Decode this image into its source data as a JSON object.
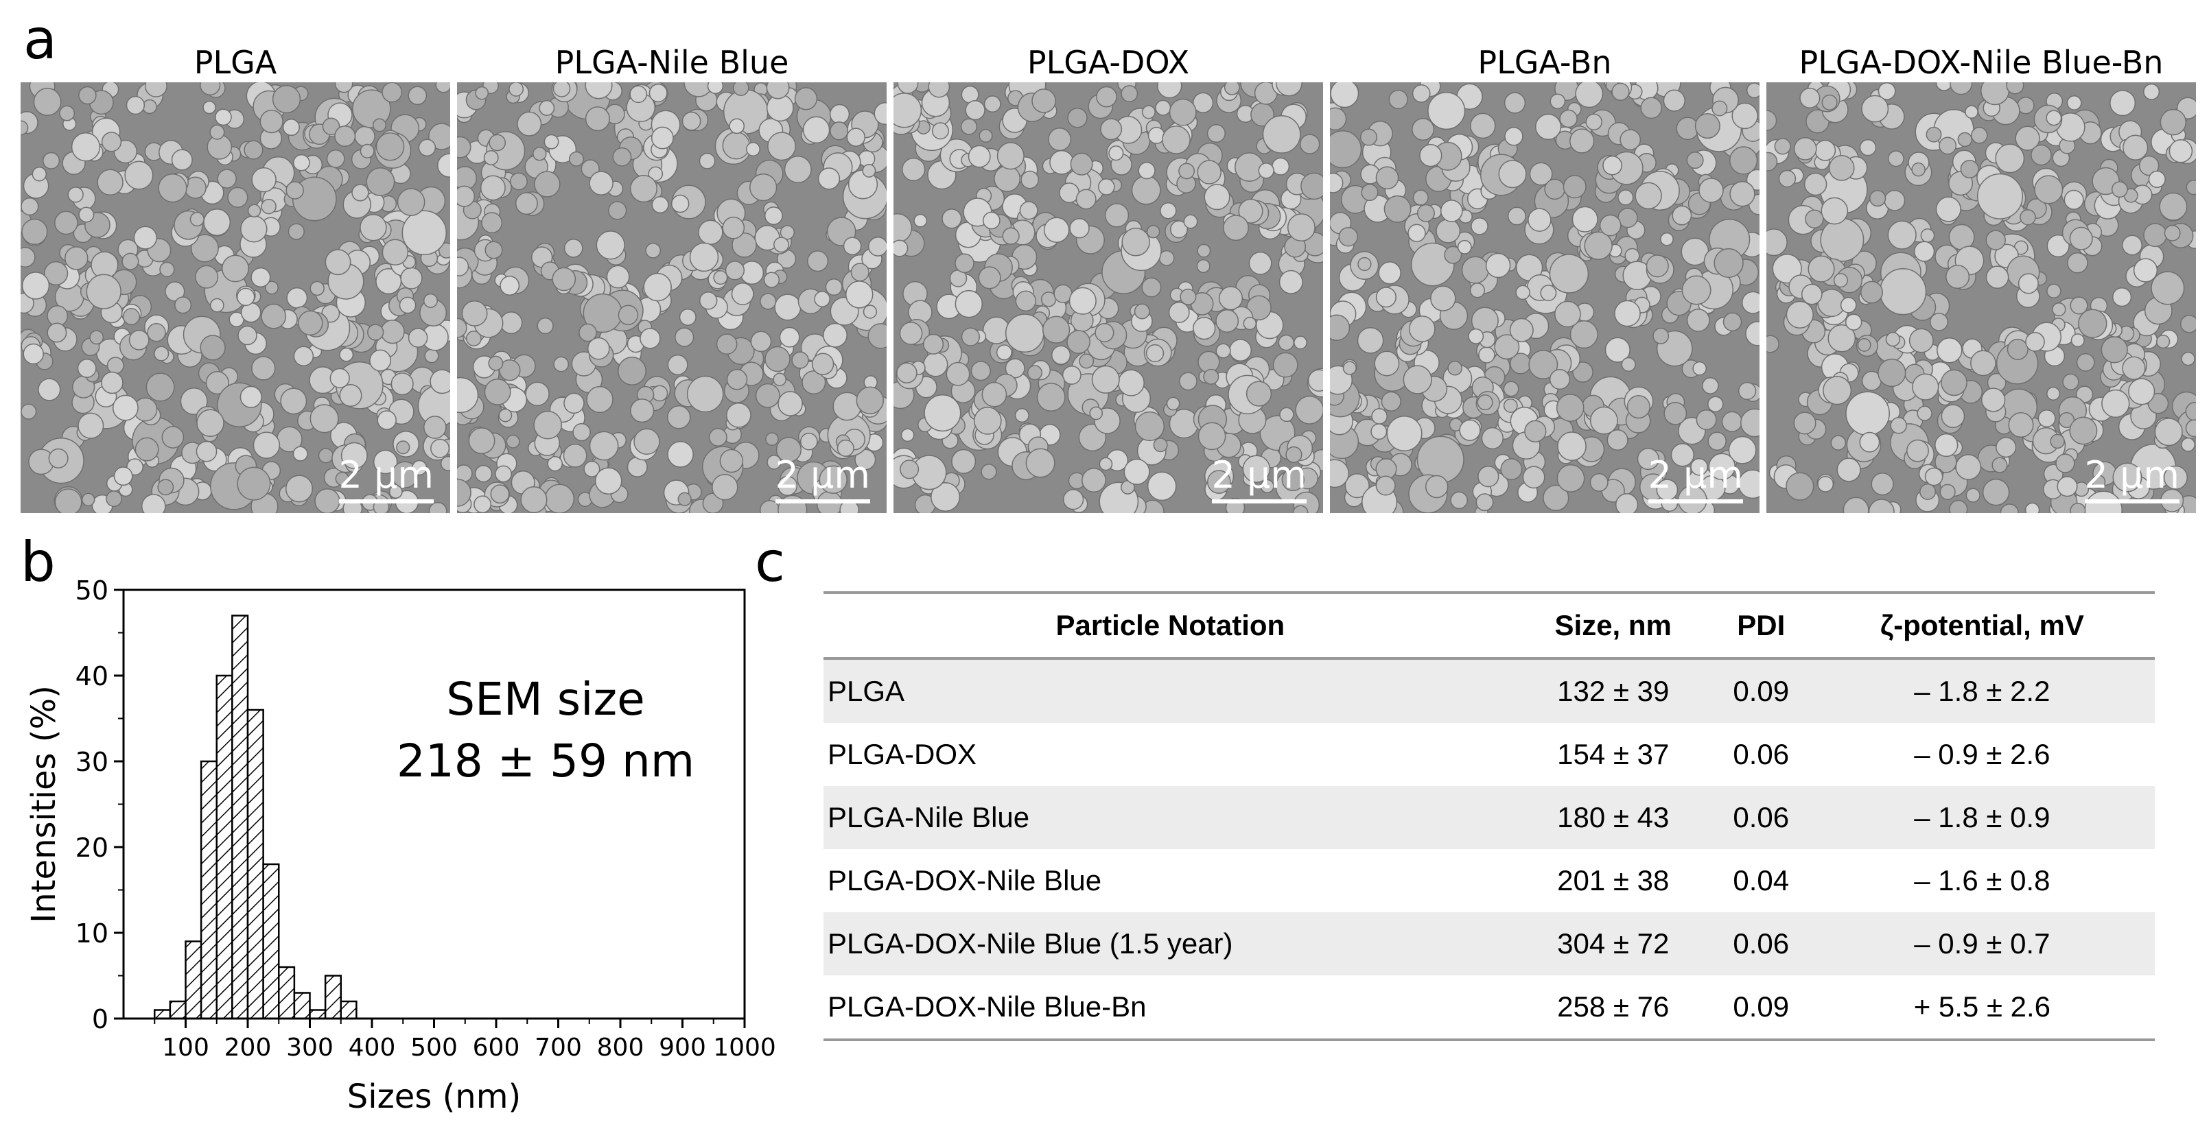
{
  "panel_a": {
    "letter": "a",
    "images": [
      {
        "title": "PLGA",
        "scale": "2 µm"
      },
      {
        "title": "PLGA-Nile Blue",
        "scale": "2 µm"
      },
      {
        "title": "PLGA-DOX",
        "scale": "2 µm"
      },
      {
        "title": "PLGA-Bn",
        "scale": "2 µm"
      },
      {
        "title": "PLGA-DOX-Nile Blue-Bn",
        "scale": "2 µm"
      }
    ]
  },
  "panel_b": {
    "letter": "b",
    "annotation_line1": "SEM size",
    "annotation_line2": "218 ± 59 nm"
  },
  "panel_c": {
    "letter": "c",
    "headers": [
      "Particle Notation",
      "Size, nm",
      "PDI",
      "ζ-potential, mV"
    ],
    "rows": [
      [
        "PLGA",
        "132 ± 39",
        "0.09",
        "– 1.8 ± 2.2"
      ],
      [
        "PLGA-DOX",
        "154 ± 37",
        "0.06",
        "– 0.9 ± 2.6"
      ],
      [
        "PLGA-Nile  Blue",
        "180 ± 43",
        "0.06",
        "– 1.8 ± 0.9"
      ],
      [
        "PLGA-DOX-Nile  Blue",
        "201 ± 38",
        "0.04",
        "– 1.6 ± 0.8"
      ],
      [
        "PLGA-DOX-Nile  Blue (1.5 year)",
        "304 ± 72",
        "0.06",
        "– 0.9 ± 0.7"
      ],
      [
        "PLGA-DOX-Nile  Blue-Bn",
        "258 ± 76",
        "0.09",
        "+ 5.5 ± 2.6"
      ]
    ]
  },
  "chart_data": {
    "type": "bar",
    "title": "",
    "xlabel": "Sizes (nm)",
    "ylabel": "Intensities (%)",
    "xlim": [
      0,
      1000
    ],
    "ylim": [
      0,
      50
    ],
    "xticks": [
      100,
      200,
      300,
      400,
      500,
      600,
      700,
      800,
      900,
      1000
    ],
    "yticks": [
      0,
      10,
      20,
      30,
      40,
      50
    ],
    "bin_width": 25,
    "bin_starts": [
      50,
      75,
      100,
      125,
      150,
      175,
      200,
      225,
      250,
      275,
      300,
      325,
      350,
      375,
      400,
      425
    ],
    "values": [
      1,
      2,
      9,
      30,
      40,
      47,
      36,
      18,
      6,
      3,
      1,
      5,
      2,
      0,
      0,
      0
    ],
    "bar_fill": "hatched",
    "grid": false,
    "legend": "none"
  }
}
